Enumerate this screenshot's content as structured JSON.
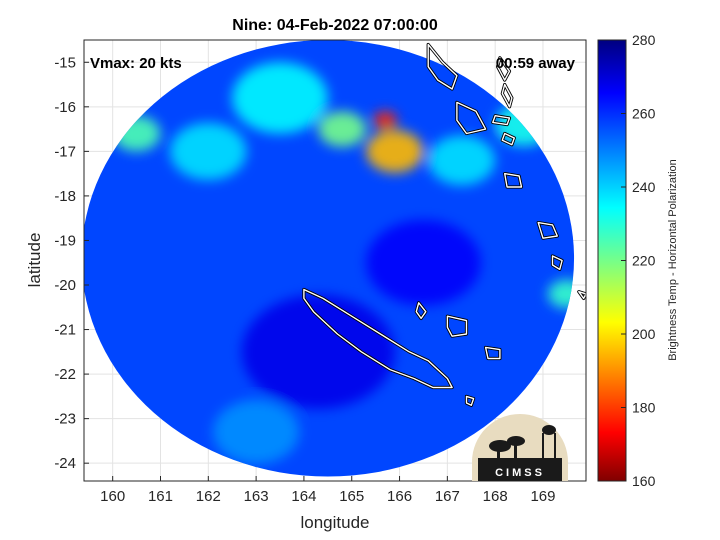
{
  "chart_data": {
    "type": "heatmap",
    "title": "Nine: 04-Feb-2022 07:00:00",
    "xlabel": "longitude",
    "ylabel": "latitude",
    "xlim": [
      159.4,
      169.9
    ],
    "ylim": [
      -24.4,
      -14.5
    ],
    "xticks": [
      "160",
      "161",
      "162",
      "163",
      "164",
      "165",
      "166",
      "167",
      "168",
      "169"
    ],
    "yticks": [
      "-15",
      "-16",
      "-17",
      "-18",
      "-19",
      "-20",
      "-21",
      "-22",
      "-23",
      "-24"
    ],
    "grid": true,
    "annotations": {
      "vmax": "Vmax: 20 kts",
      "time_away": "00:59 away"
    },
    "colorbar": {
      "label": "Brightness Temp - Horizontal Polarization",
      "range": [
        160,
        280
      ],
      "ticks": [
        "280",
        "260",
        "240",
        "220",
        "200",
        "180",
        "160"
      ],
      "colormap": "jet"
    },
    "swath": {
      "center": [
        164.5,
        -19.4
      ],
      "radius_lon": 5.15,
      "radius_lat": 4.9
    },
    "background_value": 257,
    "features": [
      {
        "lon": 165.9,
        "lat": -17.0,
        "value": 195,
        "spread": 0.6
      },
      {
        "lon": 165.7,
        "lat": -16.3,
        "value": 178,
        "spread": 0.25
      },
      {
        "lon": 164.8,
        "lat": -16.5,
        "value": 220,
        "spread": 0.5
      },
      {
        "lon": 163.5,
        "lat": -15.8,
        "value": 235,
        "spread": 1.0
      },
      {
        "lon": 160.5,
        "lat": -16.6,
        "value": 225,
        "spread": 0.5
      },
      {
        "lon": 162.0,
        "lat": -17.0,
        "value": 238,
        "spread": 0.8
      },
      {
        "lon": 167.3,
        "lat": -17.2,
        "value": 238,
        "spread": 0.7
      },
      {
        "lon": 168.6,
        "lat": -16.4,
        "value": 232,
        "spread": 0.6
      },
      {
        "lon": 169.5,
        "lat": -20.2,
        "value": 228,
        "spread": 0.4
      },
      {
        "lon": 164.3,
        "lat": -21.5,
        "value": 268,
        "spread": 1.6
      },
      {
        "lon": 166.5,
        "lat": -19.5,
        "value": 266,
        "spread": 1.2
      },
      {
        "lon": 163.0,
        "lat": -23.3,
        "value": 248,
        "spread": 0.9
      }
    ],
    "coastlines": [
      {
        "name": "New Caledonia",
        "points": [
          [
            164.0,
            -20.1
          ],
          [
            164.4,
            -20.3
          ],
          [
            165.0,
            -20.7
          ],
          [
            165.6,
            -21.1
          ],
          [
            166.2,
            -21.5
          ],
          [
            166.6,
            -21.7
          ],
          [
            167.0,
            -22.1
          ],
          [
            167.1,
            -22.3
          ],
          [
            166.7,
            -22.3
          ],
          [
            166.3,
            -22.1
          ],
          [
            165.8,
            -21.9
          ],
          [
            165.2,
            -21.5
          ],
          [
            164.7,
            -21.1
          ],
          [
            164.2,
            -20.6
          ],
          [
            164.0,
            -20.3
          ]
        ]
      },
      {
        "name": "Espiritu Santo",
        "points": [
          [
            166.6,
            -14.6
          ],
          [
            166.9,
            -15.0
          ],
          [
            167.2,
            -15.3
          ],
          [
            167.1,
            -15.6
          ],
          [
            166.8,
            -15.4
          ],
          [
            166.6,
            -15.1
          ]
        ]
      },
      {
        "name": "Maewo",
        "points": [
          [
            168.1,
            -14.9
          ],
          [
            168.3,
            -15.2
          ],
          [
            168.2,
            -15.4
          ],
          [
            168.05,
            -15.1
          ]
        ]
      },
      {
        "name": "Pentecost",
        "points": [
          [
            168.2,
            -15.5
          ],
          [
            168.35,
            -15.8
          ],
          [
            168.3,
            -16.0
          ],
          [
            168.15,
            -15.7
          ]
        ]
      },
      {
        "name": "Malakula",
        "points": [
          [
            167.2,
            -15.9
          ],
          [
            167.6,
            -16.1
          ],
          [
            167.8,
            -16.5
          ],
          [
            167.4,
            -16.6
          ],
          [
            167.2,
            -16.3
          ]
        ]
      },
      {
        "name": "Ambrym",
        "points": [
          [
            168.0,
            -16.2
          ],
          [
            168.3,
            -16.25
          ],
          [
            168.25,
            -16.4
          ],
          [
            167.95,
            -16.35
          ]
        ]
      },
      {
        "name": "Epi",
        "points": [
          [
            168.2,
            -16.6
          ],
          [
            168.4,
            -16.7
          ],
          [
            168.35,
            -16.85
          ],
          [
            168.15,
            -16.75
          ]
        ]
      },
      {
        "name": "Efate",
        "points": [
          [
            168.2,
            -17.5
          ],
          [
            168.5,
            -17.55
          ],
          [
            168.55,
            -17.8
          ],
          [
            168.25,
            -17.8
          ]
        ]
      },
      {
        "name": "Erromango",
        "points": [
          [
            168.9,
            -18.6
          ],
          [
            169.2,
            -18.65
          ],
          [
            169.3,
            -18.9
          ],
          [
            169.0,
            -18.95
          ]
        ]
      },
      {
        "name": "Tanna",
        "points": [
          [
            169.2,
            -19.35
          ],
          [
            169.4,
            -19.45
          ],
          [
            169.35,
            -19.65
          ],
          [
            169.2,
            -19.55
          ]
        ]
      },
      {
        "name": "Aneityum",
        "points": [
          [
            169.75,
            -20.15
          ],
          [
            169.9,
            -20.2
          ],
          [
            169.85,
            -20.3
          ]
        ]
      },
      {
        "name": "Ouvea",
        "points": [
          [
            166.4,
            -20.4
          ],
          [
            166.55,
            -20.6
          ],
          [
            166.45,
            -20.75
          ],
          [
            166.35,
            -20.6
          ]
        ]
      },
      {
        "name": "Lifou",
        "points": [
          [
            167.0,
            -20.7
          ],
          [
            167.4,
            -20.8
          ],
          [
            167.4,
            -21.1
          ],
          [
            167.1,
            -21.15
          ],
          [
            167.0,
            -20.95
          ]
        ]
      },
      {
        "name": "Mare",
        "points": [
          [
            167.8,
            -21.4
          ],
          [
            168.1,
            -21.45
          ],
          [
            168.1,
            -21.65
          ],
          [
            167.85,
            -21.65
          ]
        ]
      },
      {
        "name": "Isle of Pines",
        "points": [
          [
            167.4,
            -22.5
          ],
          [
            167.55,
            -22.55
          ],
          [
            167.5,
            -22.7
          ],
          [
            167.4,
            -22.65
          ]
        ]
      }
    ]
  }
}
